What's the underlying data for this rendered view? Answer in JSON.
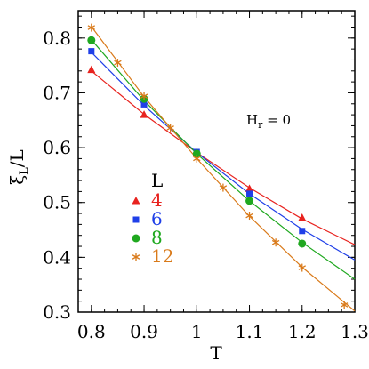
{
  "chart_data": {
    "type": "scatter",
    "xlabel": "T",
    "ylabel_main": "ξ",
    "ylabel_sub": "L",
    "ylabel_tail": "/L",
    "xlim": [
      0.775,
      1.3
    ],
    "ylim": [
      0.3,
      0.85
    ],
    "xticks": [
      0.8,
      0.9,
      1.0,
      1.1,
      1.2,
      1.3
    ],
    "xtick_labels": [
      "0.8",
      "0.9",
      "1",
      "1.1",
      "1.2",
      "1.3"
    ],
    "yticks": [
      0.3,
      0.4,
      0.5,
      0.6,
      0.7,
      0.8
    ],
    "ytick_labels": [
      "0.3",
      "0.4",
      "0.5",
      "0.6",
      "0.7",
      "0.8"
    ],
    "annotation": {
      "main": "H",
      "sub": "r",
      "tail": " = 0"
    },
    "legend_title": "L",
    "series": [
      {
        "name": "4",
        "color": "#e8231f",
        "marker": "triangle",
        "x": [
          0.8,
          0.9,
          1.0,
          1.1,
          1.2
        ],
        "y": [
          0.742,
          0.66,
          0.591,
          0.525,
          0.472
        ],
        "fit": [
          [
            0.8,
            0.74
          ],
          [
            0.9,
            0.661
          ],
          [
            1.0,
            0.591
          ],
          [
            1.1,
            0.527
          ],
          [
            1.2,
            0.47
          ],
          [
            1.3,
            0.423
          ]
        ]
      },
      {
        "name": "6",
        "color": "#1f3fe8",
        "marker": "square",
        "x": [
          0.8,
          0.9,
          1.0,
          1.1,
          1.2
        ],
        "y": [
          0.776,
          0.679,
          0.592,
          0.516,
          0.448
        ],
        "fit": [
          [
            0.8,
            0.774
          ],
          [
            0.9,
            0.677
          ],
          [
            1.0,
            0.591
          ],
          [
            1.1,
            0.516
          ],
          [
            1.2,
            0.451
          ],
          [
            1.3,
            0.395
          ]
        ]
      },
      {
        "name": "8",
        "color": "#1fa81f",
        "marker": "circle",
        "x": [
          0.8,
          0.9,
          1.0,
          1.1,
          1.2
        ],
        "y": [
          0.796,
          0.689,
          0.589,
          0.503,
          0.425
        ],
        "fit": [
          [
            0.8,
            0.797
          ],
          [
            0.9,
            0.686
          ],
          [
            1.0,
            0.589
          ],
          [
            1.1,
            0.503
          ],
          [
            1.2,
            0.427
          ],
          [
            1.3,
            0.36
          ]
        ]
      },
      {
        "name": "12",
        "color": "#d97a1a",
        "marker": "star",
        "x": [
          0.8,
          0.85,
          0.9,
          0.95,
          1.0,
          1.05,
          1.1,
          1.15,
          1.2,
          1.28
        ],
        "y": [
          0.819,
          0.755,
          0.694,
          0.636,
          0.58,
          0.527,
          0.476,
          0.427,
          0.381,
          0.313
        ],
        "fit": [
          [
            0.8,
            0.821
          ],
          [
            0.9,
            0.693
          ],
          [
            1.0,
            0.58
          ],
          [
            1.1,
            0.475
          ],
          [
            1.2,
            0.382
          ],
          [
            1.3,
            0.302
          ]
        ]
      }
    ]
  }
}
